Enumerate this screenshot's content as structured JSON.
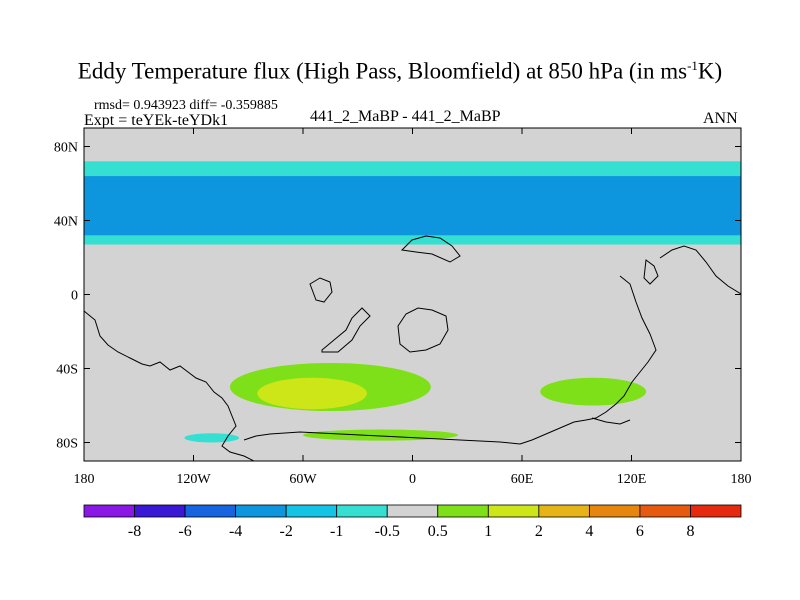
{
  "title": {
    "main": "Eddy Temperature flux (High Pass, Bloomfield) at 850 hPa (in ms",
    "sup": "-1",
    "end": "K)"
  },
  "header": {
    "rmsd_line": "rmsd= 0.943923 diff= -0.359885",
    "expt_line": "Expt = teYEk-teYDk1",
    "center": "441_2_MaBP - 441_2_MaBP",
    "season": "ANN"
  },
  "chart_data": {
    "type": "heatmap",
    "title": "Eddy Temperature flux (High Pass, Bloomfield) at 850 hPa (in ms-1K)",
    "x_tick_labels": [
      "180",
      "120W",
      "60W",
      "0",
      "60E",
      "120E",
      "180"
    ],
    "y_tick_labels": [
      "80N",
      "40N",
      "0",
      "40S",
      "80S"
    ],
    "xlim": [
      -180,
      180
    ],
    "ylim": [
      -90,
      90
    ],
    "colorbar": {
      "levels": [
        "-8",
        "-6",
        "-4",
        "-2",
        "-1",
        "-0.5",
        "0.5",
        "1",
        "2",
        "4",
        "6",
        "8"
      ],
      "colors": [
        "#8a17e6",
        "#3a18d6",
        "#1664e0",
        "#0d96de",
        "#14c4e6",
        "#35e0d2",
        "#d3d3d3",
        "#7ee018",
        "#cde618",
        "#e6b416",
        "#e6860f",
        "#e65a10",
        "#e62a10"
      ]
    },
    "regions": [
      {
        "level": "-1",
        "color": "#35e0d2",
        "lon": [
          -180,
          180
        ],
        "lat": [
          27,
          72
        ]
      },
      {
        "level": "-2",
        "color": "#0d96de",
        "lon": [
          -180,
          180
        ],
        "lat": [
          32,
          64
        ]
      },
      {
        "level": "0.5",
        "color": "#7ee018",
        "lon": [
          -100,
          10
        ],
        "lat": [
          -63,
          -37
        ]
      },
      {
        "level": "1",
        "color": "#cde618",
        "lon": [
          -85,
          -25
        ],
        "lat": [
          -62,
          -45
        ]
      },
      {
        "level": "0.5",
        "color": "#7ee018",
        "lon": [
          -60,
          25
        ],
        "lat": [
          -79,
          -73
        ]
      },
      {
        "level": "0.5",
        "color": "#7ee018",
        "lon": [
          70,
          128
        ],
        "lat": [
          -60,
          -45
        ]
      },
      {
        "level": "-0.5",
        "color": "#35e0d2",
        "lon": [
          -125,
          -95
        ],
        "lat": [
          -80,
          -75
        ]
      }
    ]
  }
}
